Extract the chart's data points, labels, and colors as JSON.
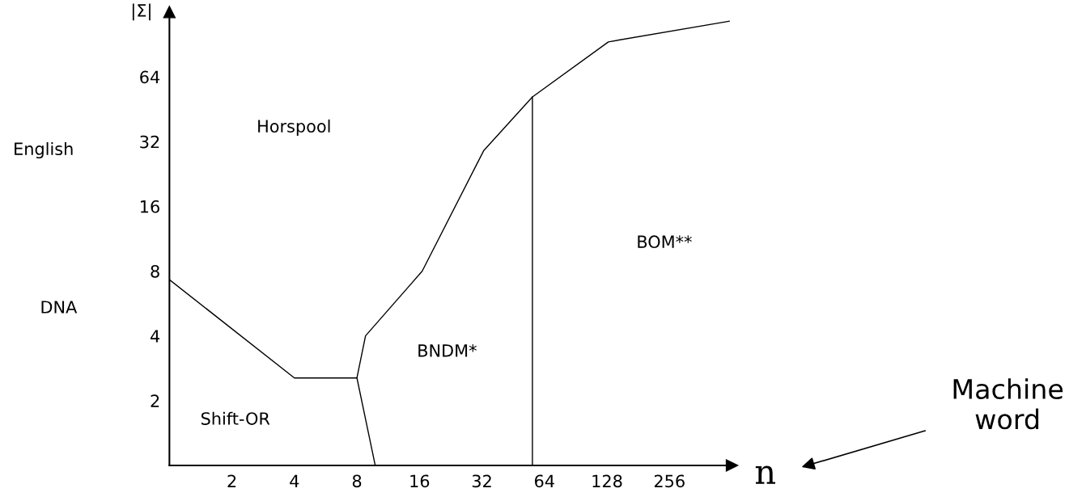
{
  "chart_data": {
    "type": "line",
    "xlabel": "n",
    "ylabel": "|Σ|",
    "log": "xy",
    "xlim": [
      1,
      512
    ],
    "ylim": [
      1,
      128
    ],
    "xticks": [
      2,
      4,
      8,
      16,
      32,
      64,
      128,
      256
    ],
    "yticks": [
      2,
      4,
      8,
      16,
      32,
      64
    ],
    "grid": false,
    "legend": false,
    "marker": "none",
    "line_style": "solid",
    "series": [
      {
        "color": "#000000",
        "x": [
          1,
          4,
          8,
          8.8,
          16.5,
          32.6,
          56,
          130,
          497
        ],
        "values": [
          7.3,
          2.55,
          2.55,
          4,
          8,
          29,
          51.6,
          93,
          116
        ]
      },
      {
        "color": "#000000",
        "x": [
          8,
          9.8
        ],
        "values": [
          2.55,
          1
        ]
      },
      {
        "color": "#000000",
        "x": [
          56,
          56
        ],
        "values": [
          51.6,
          1
        ]
      }
    ],
    "annotations": [
      "Horspool",
      "Shift-OR",
      "BNDM*",
      "BOM**",
      "English",
      "DNA",
      "Machine\nword"
    ]
  }
}
